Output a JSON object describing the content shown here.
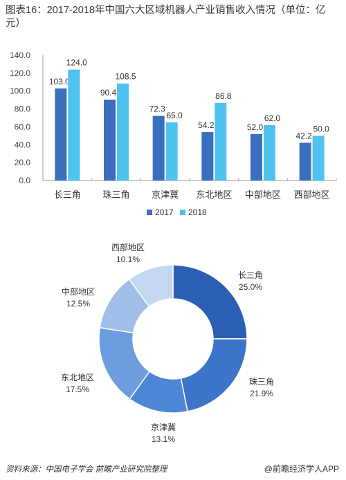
{
  "title": "图表16：2017-2018年中国六大区域机器人产业销售收入情况（单位：亿元）",
  "source": "资料来源：中国电子学会 前瞻产业研究院整理",
  "logo_text": "@前瞻经济学人APP",
  "chart_data": [
    {
      "type": "bar",
      "categories": [
        "长三角",
        "珠三角",
        "京津冀",
        "东北地区",
        "中部地区",
        "西部地区"
      ],
      "series": [
        {
          "name": "2017",
          "values": [
            103.0,
            90.4,
            72.3,
            54.2,
            52.0,
            42.2
          ],
          "color": "#3a6fc0"
        },
        {
          "name": "2018",
          "values": [
            124.0,
            108.5,
            65.0,
            86.8,
            62.0,
            50.0
          ],
          "color": "#4fc3f0"
        }
      ],
      "yticks": [
        "0.0",
        "20.0",
        "40.0",
        "60.0",
        "80.0",
        "100.0",
        "120.0",
        "140.0"
      ],
      "ylim": [
        0,
        140
      ],
      "grid": false,
      "legend": "bottom"
    },
    {
      "type": "pie",
      "donut": true,
      "slices": [
        {
          "name": "长三角",
          "value": 25.0,
          "label": "25.0%",
          "color": "#2a5fb4"
        },
        {
          "name": "珠三角",
          "value": 21.9,
          "label": "21.9%",
          "color": "#3b74c8"
        },
        {
          "name": "京津冀",
          "value": 13.1,
          "label": "13.1%",
          "color": "#4d86d4"
        },
        {
          "name": "东北地区",
          "value": 17.5,
          "label": "17.5%",
          "color": "#6d9ddf"
        },
        {
          "name": "中部地区",
          "value": 12.5,
          "label": "12.5%",
          "color": "#9fbfe9"
        },
        {
          "name": "西部地区",
          "value": 10.1,
          "label": "10.1%",
          "color": "#c4d7f1"
        }
      ]
    }
  ]
}
